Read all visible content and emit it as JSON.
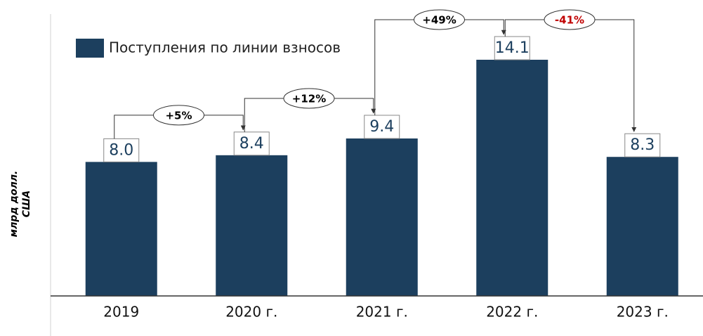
{
  "chart_data": {
    "type": "bar",
    "legend": "Поступления по линии взносов",
    "ylabel": [
      "млрд долл.",
      "США"
    ],
    "categories": [
      "2019",
      "2020 г.",
      "2021 г.",
      "2022 г.",
      "2023 г."
    ],
    "values": [
      8.0,
      8.4,
      9.4,
      14.1,
      8.3
    ],
    "value_labels": [
      "8.0",
      "8.4",
      "9.4",
      "14.1",
      "8.3"
    ],
    "color": "#1c3f5e",
    "changes": [
      "+5%",
      "+12%",
      "+49%",
      "-41%"
    ],
    "change_colors": [
      "#000000",
      "#000000",
      "#000000",
      "#c00000"
    ]
  }
}
